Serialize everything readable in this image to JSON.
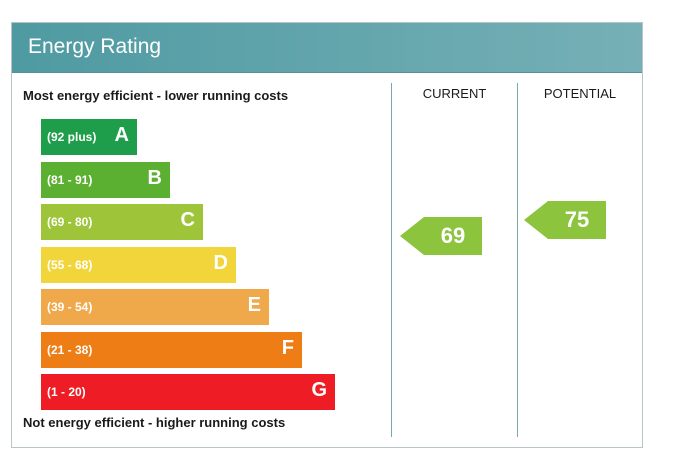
{
  "title": "Energy Rating",
  "top_caption": "Most energy efficient - lower running costs",
  "bottom_caption": "Not energy efficient - higher running costs",
  "columns": {
    "current": "CURRENT",
    "potential": "POTENTIAL"
  },
  "chart_data": {
    "type": "bar",
    "categories": [
      "A",
      "B",
      "C",
      "D",
      "E",
      "F",
      "G"
    ],
    "bands": [
      {
        "letter": "A",
        "range": "(92 plus)",
        "color": "#1e9e4a"
      },
      {
        "letter": "B",
        "range": "(81 - 91)",
        "color": "#5cb031"
      },
      {
        "letter": "C",
        "range": "(69 - 80)",
        "color": "#9ec53a"
      },
      {
        "letter": "D",
        "range": "(55 - 68)",
        "color": "#f2d53b"
      },
      {
        "letter": "E",
        "range": "(39 - 54)",
        "color": "#f0a94a"
      },
      {
        "letter": "F",
        "range": "(21 - 38)",
        "color": "#ef7d16"
      },
      {
        "letter": "G",
        "range": "(1 - 20)",
        "color": "#ee1c24"
      }
    ],
    "current": {
      "value": "69",
      "band": "C",
      "color": "#8cc43e"
    },
    "potential": {
      "value": "75",
      "band": "C",
      "color": "#8cc43e"
    }
  }
}
